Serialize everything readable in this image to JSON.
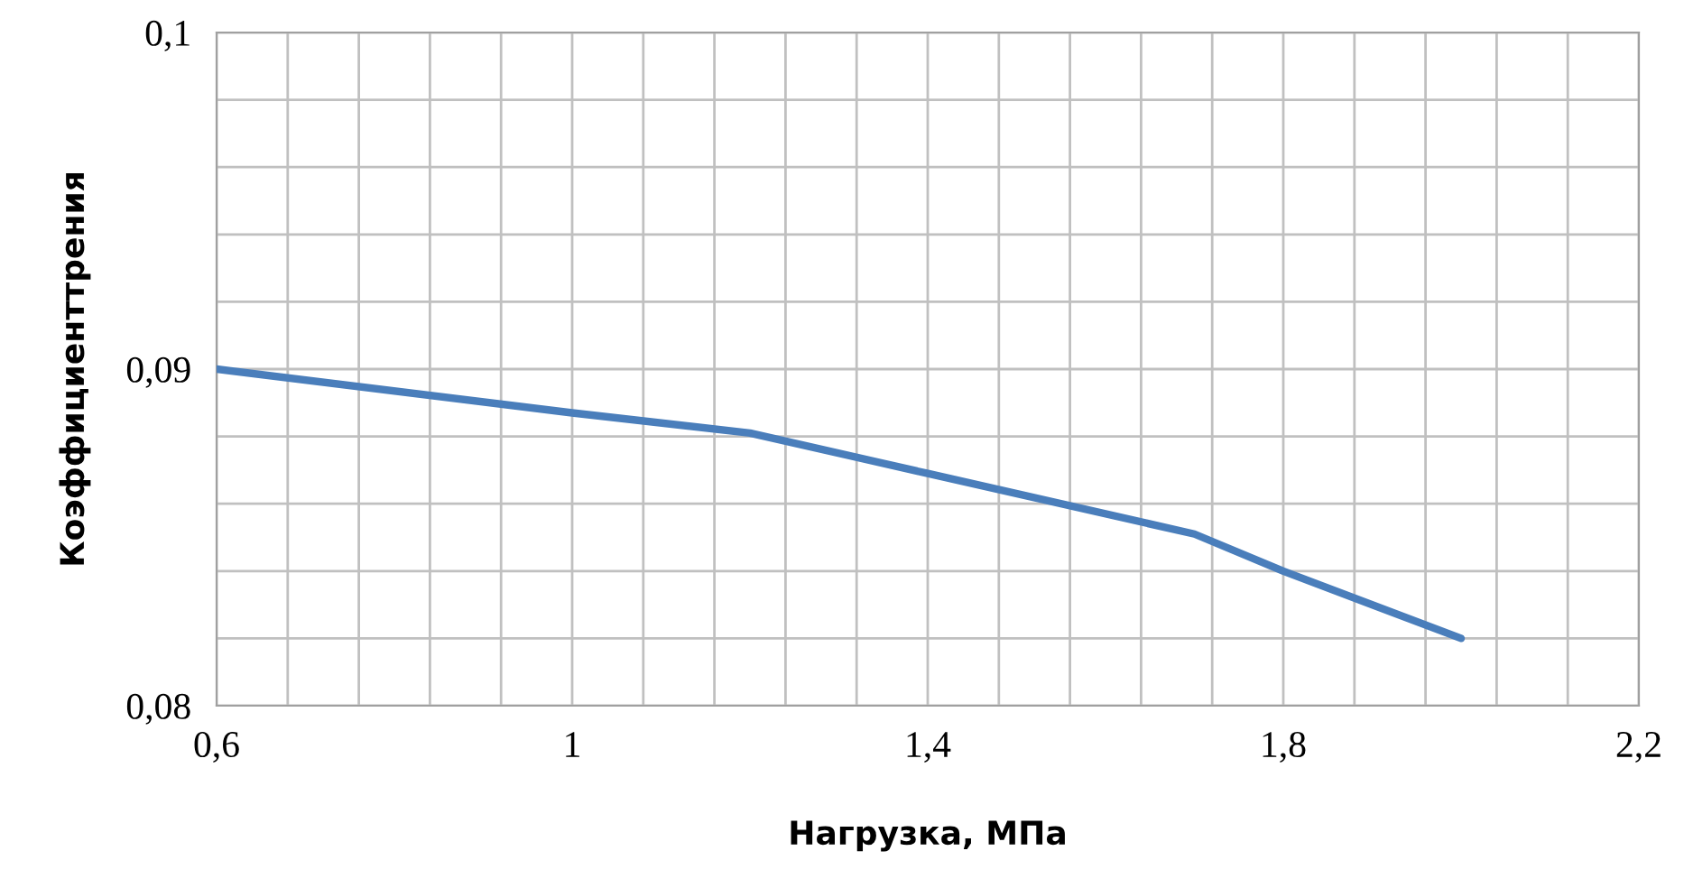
{
  "chart_data": {
    "type": "line",
    "xlabel": "Нагрузка, МПа",
    "ylabel": "Коэффициенттрения",
    "x": [
      0.6,
      1.0,
      1.2,
      1.4,
      1.7,
      1.8,
      2.0
    ],
    "series": [
      {
        "color": "#4a7ebb",
        "values": [
          0.09,
          0.0887,
          0.0881,
          0.0869,
          0.0851,
          0.084,
          0.082
        ]
      }
    ],
    "xlim": [
      0.6,
      2.2
    ],
    "ylim": [
      0.08,
      0.1
    ],
    "xticks": [
      {
        "value": 0.6,
        "label": "0,6"
      },
      {
        "value": 0.68,
        "label": null
      },
      {
        "value": 0.76,
        "label": null
      },
      {
        "value": 0.84,
        "label": null
      },
      {
        "value": 0.92,
        "label": null
      },
      1,
      {
        "value": 1.08,
        "label": null
      },
      {
        "value": 1.16,
        "label": null
      },
      {
        "value": 1.24,
        "label": null
      },
      {
        "value": 1.32,
        "label": null
      },
      {
        "value": 1.4,
        "label": "1,4"
      },
      {
        "value": 1.48,
        "label": null
      },
      {
        "value": 1.56,
        "label": null
      },
      {
        "value": 1.64,
        "label": null
      },
      {
        "value": 1.72,
        "label": null
      },
      {
        "value": 1.8,
        "label": "1,8"
      },
      {
        "value": 1.88,
        "label": null
      },
      {
        "value": 1.96,
        "label": null
      },
      {
        "value": 2.04,
        "label": null
      },
      {
        "value": 2.12,
        "label": null
      },
      {
        "value": 2.2,
        "label": "2,2"
      }
    ],
    "yticks": [
      {
        "value": 0.08,
        "label": "0,08"
      },
      {
        "value": 0.082,
        "label": null
      },
      {
        "value": 0.084,
        "label": null
      },
      {
        "value": 0.086,
        "label": null
      },
      {
        "value": 0.088,
        "label": null
      },
      {
        "value": 0.09,
        "label": "0,09"
      },
      {
        "value": 0.092,
        "label": null
      },
      {
        "value": 0.094,
        "label": null
      },
      {
        "value": 0.096,
        "label": null
      },
      {
        "value": 0.098,
        "label": null
      },
      {
        "value": 0.1,
        "label": "0,1"
      }
    ],
    "grid": true,
    "marker": "none",
    "line_style": "solid"
  }
}
